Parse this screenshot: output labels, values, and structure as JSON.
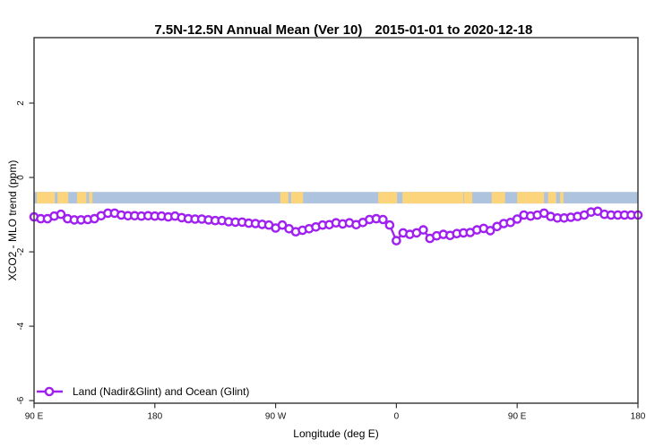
{
  "chart_data": {
    "type": "line",
    "title_main": "7.5N-12.5N Annual Mean (Ver 10)",
    "title_daterange": "2015-01-01 to 2020-12-18",
    "xlabel": "Longitude (deg E)",
    "ylabel": "XCO2 - MLO trend (ppm)",
    "xlim": [
      90,
      540
    ],
    "ylim": [
      -6.07,
      3.76
    ],
    "grid": false,
    "xticks": [
      {
        "value": 90,
        "label": "90 E"
      },
      {
        "value": 180,
        "label": "180"
      },
      {
        "value": 270,
        "label": "90 W"
      },
      {
        "value": 360,
        "label": "0"
      },
      {
        "value": 450,
        "label": "90 E"
      },
      {
        "value": 540,
        "label": "180"
      }
    ],
    "yticks": [
      {
        "value": 2,
        "label": "2"
      },
      {
        "value": 0,
        "label": "0"
      },
      {
        "value": -2,
        "label": "-2"
      },
      {
        "value": -4,
        "label": "-4"
      },
      {
        "value": -6,
        "label": "-6"
      }
    ],
    "series": [
      {
        "name": "Land (Nadir&Glint) and Ocean (Glint)",
        "color": "#A020F0",
        "marker": "open-circle",
        "x": [
          90,
          95,
          100,
          105,
          110,
          115,
          120,
          125,
          130,
          135,
          140,
          145,
          150,
          155,
          160,
          165,
          170,
          175,
          180,
          185,
          190,
          195,
          200,
          205,
          210,
          215,
          220,
          225,
          230,
          235,
          240,
          245,
          250,
          255,
          260,
          265,
          270,
          275,
          280,
          285,
          290,
          295,
          300,
          305,
          310,
          315,
          320,
          325,
          330,
          335,
          340,
          345,
          350,
          355,
          360,
          365,
          370,
          375,
          380,
          385,
          390,
          395,
          400,
          405,
          410,
          415,
          420,
          425,
          430,
          435,
          440,
          445,
          450,
          455,
          460,
          465,
          470,
          475,
          480,
          485,
          490,
          495,
          500,
          505,
          510,
          515,
          520,
          525,
          530,
          535,
          540
        ],
        "values": [
          -1.06,
          -1.11,
          -1.11,
          -1.04,
          -0.99,
          -1.11,
          -1.14,
          -1.14,
          -1.13,
          -1.11,
          -1.03,
          -0.96,
          -0.96,
          -1.01,
          -1.03,
          -1.03,
          -1.04,
          -1.03,
          -1.04,
          -1.04,
          -1.06,
          -1.04,
          -1.08,
          -1.11,
          -1.12,
          -1.12,
          -1.14,
          -1.16,
          -1.16,
          -1.19,
          -1.2,
          -1.2,
          -1.23,
          -1.24,
          -1.26,
          -1.28,
          -1.36,
          -1.28,
          -1.38,
          -1.46,
          -1.42,
          -1.38,
          -1.33,
          -1.28,
          -1.27,
          -1.22,
          -1.25,
          -1.22,
          -1.27,
          -1.21,
          -1.13,
          -1.11,
          -1.13,
          -1.28,
          -1.7,
          -1.49,
          -1.53,
          -1.49,
          -1.41,
          -1.64,
          -1.57,
          -1.53,
          -1.56,
          -1.51,
          -1.49,
          -1.48,
          -1.41,
          -1.37,
          -1.43,
          -1.32,
          -1.24,
          -1.21,
          -1.12,
          -1.01,
          -1.04,
          -1.01,
          -0.96,
          -1.05,
          -1.09,
          -1.09,
          -1.07,
          -1.05,
          -1.01,
          -0.93,
          -0.91,
          -0.99,
          -1.01,
          -1.01,
          -1.01,
          -1.01,
          -1.01
        ]
      }
    ],
    "map_strip": {
      "description": "thin world-map latitude band 7.5N-12.5N drawn across plot",
      "ocean_color": "#AEC3DE",
      "land_color": "#FBD47C",
      "y_range": [
        -0.39,
        -0.7
      ],
      "land_segments_lon": [
        [
          92,
          105.5
        ],
        [
          107.5,
          115.5
        ],
        [
          122,
          129
        ],
        [
          131,
          133.5
        ],
        [
          273.5,
          279.5
        ],
        [
          281.5,
          290.5
        ],
        [
          346.5,
          360.5
        ],
        [
          364.5,
          410
        ],
        [
          410.5,
          416.5
        ],
        [
          431,
          441
        ],
        [
          450,
          470
        ],
        [
          473,
          479
        ],
        [
          482,
          484.5
        ]
      ]
    },
    "legend": {
      "position": "bottom-left"
    },
    "axis_color": "#333333"
  }
}
